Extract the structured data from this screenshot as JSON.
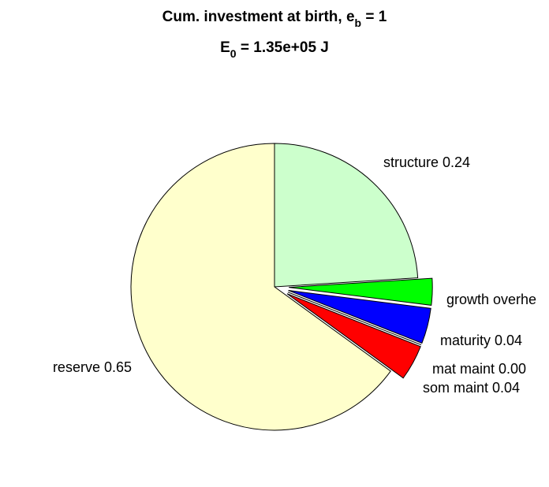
{
  "chart_data": {
    "type": "pie",
    "title": [
      "Cum. investment at birth, e",
      "b",
      " = 1"
    ],
    "subtitle": [
      "E",
      "0",
      " = 1.35e+05 J"
    ],
    "labels": [
      "structure 0.24",
      "growth overhe",
      "maturity 0.04",
      "mat maint 0.00",
      "som maint 0.04",
      "reserve 0.65"
    ],
    "values": [
      0.24,
      0.03,
      0.04,
      0.0,
      0.04,
      0.65
    ],
    "colors": [
      "#ccffcc",
      "#00ff00",
      "#0000ff",
      "#ff00ff",
      "#ff0000",
      "#ffffcc"
    ],
    "explode": [
      false,
      true,
      true,
      true,
      true,
      false
    ]
  }
}
